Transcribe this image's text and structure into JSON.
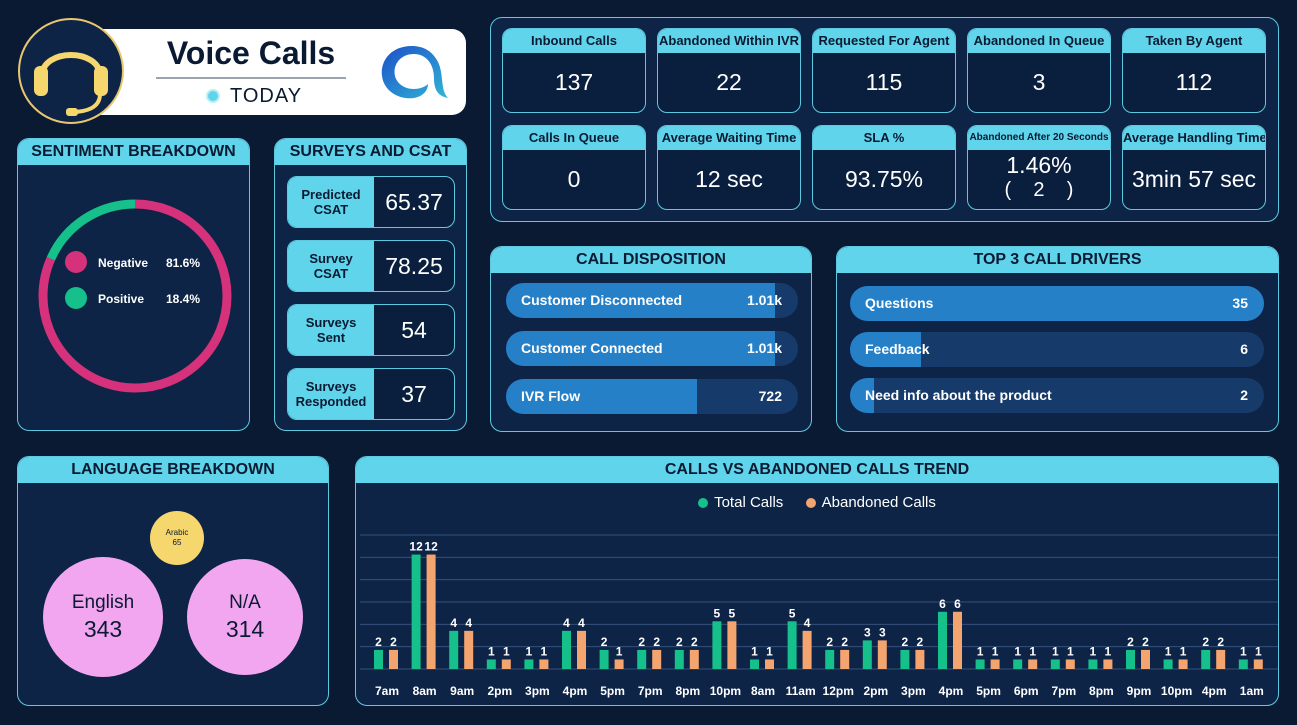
{
  "header": {
    "title": "Voice Calls",
    "period": "TODAY",
    "icons": {
      "headset": "headset-icon",
      "logo": "brand-logo"
    }
  },
  "kpis": [
    {
      "label": "Inbound Calls",
      "value": "137"
    },
    {
      "label": "Abandoned Within IVR",
      "value": "22"
    },
    {
      "label": "Requested For Agent",
      "value": "115"
    },
    {
      "label": "Abandoned In Queue",
      "value": "3"
    },
    {
      "label": "Taken By Agent",
      "value": "112"
    },
    {
      "label": "Calls In Queue",
      "value": "0"
    },
    {
      "label": "Average Waiting Time",
      "value": "12 sec"
    },
    {
      "label": "SLA %",
      "value": "93.75%"
    },
    {
      "label": "Abandoned After 20 Seconds",
      "value": "1.46%",
      "sub": "(    2    )"
    },
    {
      "label": "Average Handling Time",
      "value": "3min 57 sec"
    }
  ],
  "sentiment": {
    "title": "SENTIMENT BREAKDOWN",
    "items": [
      {
        "label": "Negative",
        "percent": "81.6%",
        "fraction": 0.816,
        "color": "#d6327c"
      },
      {
        "label": "Positive",
        "percent": "18.4%",
        "fraction": 0.184,
        "color": "#15c08a"
      }
    ]
  },
  "surveys": {
    "title": "SURVEYS AND CSAT",
    "rows": [
      {
        "label": "Predicted CSAT",
        "value": "65.37"
      },
      {
        "label": "Survey CSAT",
        "value": "78.25"
      },
      {
        "label": "Surveys Sent",
        "value": "54"
      },
      {
        "label": "Surveys Responded",
        "value": "37"
      }
    ]
  },
  "disposition": {
    "title": "CALL DISPOSITION",
    "rows": [
      {
        "label": "Customer Disconnected",
        "value": "1.01k",
        "fraction": 0.92
      },
      {
        "label": "Customer Connected",
        "value": "1.01k",
        "fraction": 0.92
      },
      {
        "label": "IVR Flow",
        "value": "722",
        "fraction": 0.655
      }
    ]
  },
  "drivers": {
    "title": "TOP 3 CALL DRIVERS",
    "rows": [
      {
        "label": "Questions",
        "value": "35",
        "fraction": 1.0
      },
      {
        "label": "Feedback",
        "value": "6",
        "fraction": 0.171
      },
      {
        "label": "Need info about the product",
        "value": "2",
        "fraction": 0.057
      }
    ]
  },
  "language": {
    "title": "LANGUAGE BREAKDOWN",
    "bubbles": [
      {
        "label": "Arabic",
        "value": "65",
        "color": "#f5d76e"
      },
      {
        "label": "English",
        "value": "343",
        "color": "#f3a6f0"
      },
      {
        "label": "N/A",
        "value": "314",
        "color": "#f3a6f0"
      }
    ]
  },
  "chart_data": {
    "type": "bar",
    "title": "CALLS VS ABANDONED CALLS TREND",
    "categories": [
      "7am",
      "8am",
      "9am",
      "2pm",
      "3pm",
      "4pm",
      "5pm",
      "7pm",
      "8pm",
      "10pm",
      "8am",
      "11am",
      "12pm",
      "2pm",
      "3pm",
      "4pm",
      "5pm",
      "6pm",
      "7pm",
      "8pm",
      "9pm",
      "10pm",
      "4pm",
      "1am"
    ],
    "series": [
      {
        "name": "Total Calls",
        "color": "#15c08a",
        "values": [
          2,
          12,
          4,
          1,
          1,
          4,
          2,
          2,
          2,
          5,
          1,
          5,
          2,
          3,
          2,
          6,
          1,
          1,
          1,
          1,
          2,
          1,
          2,
          1
        ]
      },
      {
        "name": "Abandoned Calls",
        "color": "#f4a46e",
        "values": [
          2,
          12,
          4,
          1,
          1,
          4,
          1,
          2,
          2,
          5,
          1,
          4,
          2,
          3,
          2,
          6,
          1,
          1,
          1,
          1,
          2,
          1,
          2,
          1
        ]
      }
    ],
    "ylim": [
      0,
      13
    ],
    "grid": true,
    "legend": "top-center"
  }
}
